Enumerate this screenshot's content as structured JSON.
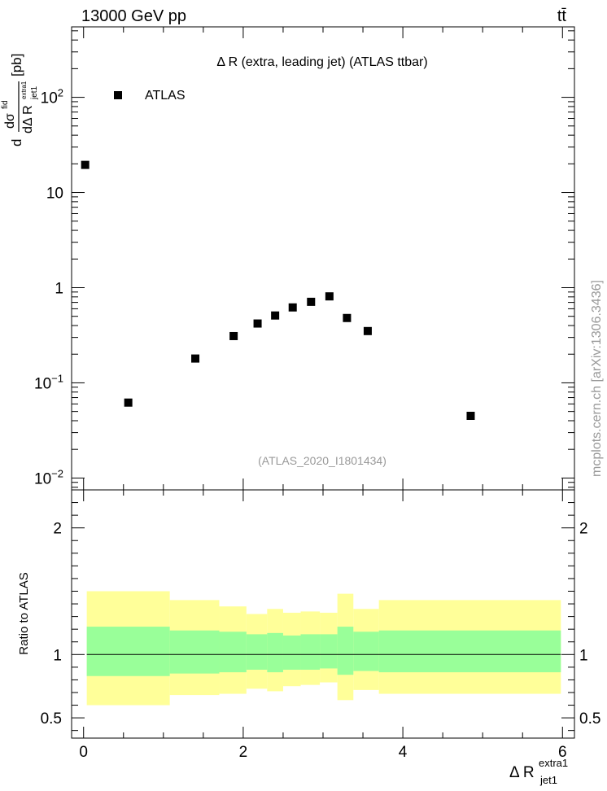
{
  "header": {
    "left": "13000 GeV pp",
    "right": "tt̄"
  },
  "side_label": "mcplots.cern.ch [arXiv:1306.3436]",
  "chart_data": [
    {
      "type": "scatter",
      "title": "Δ R (extra, leading jet) (ATLAS ttbar)",
      "analysis_label": "(ATLAS_2020_I1801434)",
      "ylabel": {
        "main": "d",
        "num": "dσ",
        "num_sup": "fid",
        "den": "dΔ R",
        "den_sub": "jet1",
        "den_sup": "extra1",
        "unit": "[pb]"
      },
      "yscale": "log",
      "xlim": [
        -0.15,
        6.15
      ],
      "ylim": [
        0.0075,
        550
      ],
      "y_ticks": [
        {
          "value": 0.01,
          "base": "10",
          "exp": "−2"
        },
        {
          "value": 0.1,
          "base": "10",
          "exp": "−1"
        },
        {
          "value": 1,
          "base": "1",
          "exp": ""
        },
        {
          "value": 10,
          "base": "10",
          "exp": ""
        },
        {
          "value": 100,
          "base": "10",
          "exp": "2"
        }
      ],
      "legend": {
        "position": "top-left",
        "entries": [
          "ATLAS"
        ]
      },
      "series": [
        {
          "name": "ATLAS",
          "x": [
            0.02,
            0.56,
            1.4,
            1.88,
            2.18,
            2.4,
            2.62,
            2.85,
            3.08,
            3.3,
            3.56,
            4.85
          ],
          "y": [
            19.5,
            0.062,
            0.18,
            0.31,
            0.42,
            0.51,
            0.62,
            0.71,
            0.81,
            0.48,
            0.35,
            0.045
          ]
        }
      ]
    },
    {
      "type": "area",
      "ylabel": "Ratio to ATLAS",
      "xlabel": {
        "main": "Δ R",
        "sub": "jet1",
        "sup": "extra1"
      },
      "xlim": [
        -0.15,
        6.15
      ],
      "ylim": [
        0.34,
        2.3
      ],
      "y_ticks": [
        "0.5",
        "1",
        "2"
      ],
      "x_ticks": [
        "0",
        "2",
        "4",
        "6"
      ],
      "reference_line": 1,
      "bands": [
        {
          "name": "outer",
          "color": "#ffff99",
          "edges": [
            0.04,
            1.08,
            1.7,
            2.04,
            2.3,
            2.5,
            2.72,
            2.96,
            3.18,
            3.38,
            3.7,
            5.98
          ],
          "low": [
            0.6,
            0.68,
            0.69,
            0.73,
            0.71,
            0.75,
            0.76,
            0.78,
            0.64,
            0.72,
            0.69
          ],
          "high": [
            1.5,
            1.43,
            1.38,
            1.32,
            1.36,
            1.33,
            1.34,
            1.33,
            1.48,
            1.36,
            1.43
          ]
        },
        {
          "name": "inner",
          "color": "#99ff99",
          "edges": [
            0.04,
            1.08,
            1.7,
            2.04,
            2.3,
            2.5,
            2.72,
            2.96,
            3.18,
            3.38,
            3.7,
            5.98
          ],
          "low": [
            0.83,
            0.85,
            0.86,
            0.88,
            0.86,
            0.88,
            0.88,
            0.89,
            0.84,
            0.87,
            0.86
          ],
          "high": [
            1.22,
            1.19,
            1.18,
            1.16,
            1.17,
            1.15,
            1.16,
            1.16,
            1.22,
            1.18,
            1.19
          ]
        }
      ]
    }
  ]
}
